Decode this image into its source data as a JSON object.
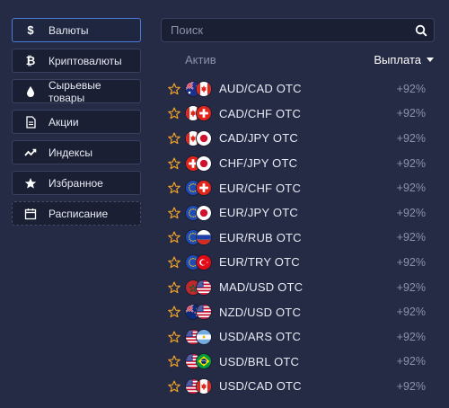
{
  "sidebar": {
    "items": [
      {
        "label": "Валюты",
        "icon": "dollar-icon",
        "active": true
      },
      {
        "label": "Криптовалюты",
        "icon": "bitcoin-icon"
      },
      {
        "label": "Сырьевые товары",
        "icon": "oil-drop-icon"
      },
      {
        "label": "Акции",
        "icon": "document-icon"
      },
      {
        "label": "Индексы",
        "icon": "trend-icon"
      },
      {
        "label": "Избранное",
        "icon": "star-icon"
      },
      {
        "label": "Расписание",
        "icon": "calendar-icon"
      }
    ]
  },
  "search": {
    "placeholder": "Поиск",
    "value": ""
  },
  "table": {
    "asset_header": "Актив",
    "payout_header": "Выплата",
    "rows": [
      {
        "name": "AUD/CAD OTC",
        "payout": "+92%",
        "flags": [
          "au",
          "ca"
        ]
      },
      {
        "name": "CAD/CHF OTC",
        "payout": "+92%",
        "flags": [
          "ca",
          "ch"
        ]
      },
      {
        "name": "CAD/JPY OTC",
        "payout": "+92%",
        "flags": [
          "ca",
          "jp"
        ]
      },
      {
        "name": "CHF/JPY OTC",
        "payout": "+92%",
        "flags": [
          "ch",
          "jp"
        ]
      },
      {
        "name": "EUR/CHF OTC",
        "payout": "+92%",
        "flags": [
          "eu",
          "ch"
        ]
      },
      {
        "name": "EUR/JPY OTC",
        "payout": "+92%",
        "flags": [
          "eu",
          "jp"
        ]
      },
      {
        "name": "EUR/RUB OTC",
        "payout": "+92%",
        "flags": [
          "eu",
          "ru"
        ]
      },
      {
        "name": "EUR/TRY OTC",
        "payout": "+92%",
        "flags": [
          "eu",
          "tr"
        ]
      },
      {
        "name": "MAD/USD OTC",
        "payout": "+92%",
        "flags": [
          "ma",
          "us"
        ]
      },
      {
        "name": "NZD/USD OTC",
        "payout": "+92%",
        "flags": [
          "nz",
          "us"
        ]
      },
      {
        "name": "USD/ARS OTC",
        "payout": "+92%",
        "flags": [
          "us",
          "ar"
        ]
      },
      {
        "name": "USD/BRL OTC",
        "payout": "+92%",
        "flags": [
          "us",
          "br"
        ]
      },
      {
        "name": "USD/CAD OTC",
        "payout": "+92%",
        "flags": [
          "us",
          "ca"
        ]
      }
    ]
  },
  "colors": {
    "background": "#252b45",
    "panel": "#1a1f33",
    "accent_border": "#4b7bd8",
    "star": "#f0a229",
    "muted_text": "#8b91ab"
  }
}
